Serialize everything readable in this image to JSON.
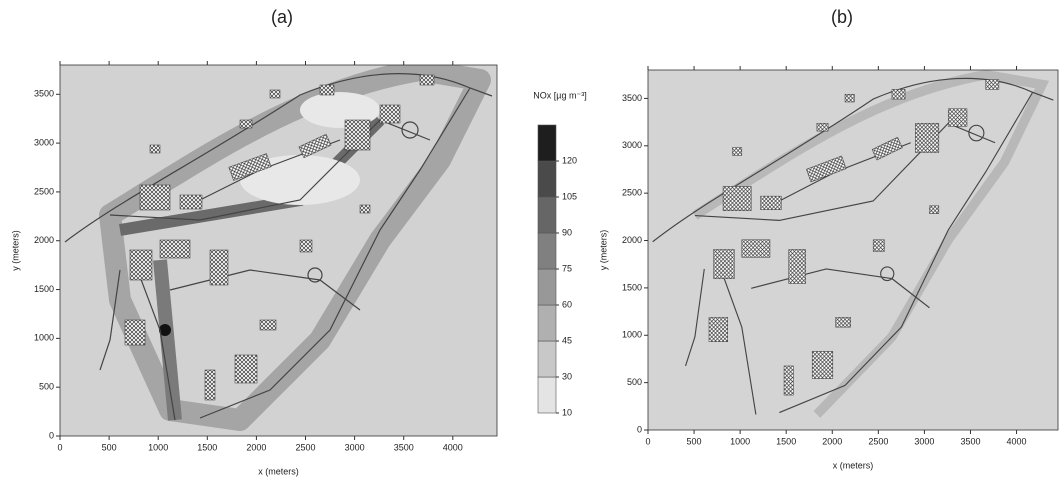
{
  "panels": [
    {
      "label": "(a)",
      "xlabel": "x (meters)",
      "ylabel": "y (meters)",
      "xlim": [
        0,
        4450
      ],
      "ylim": [
        0,
        3800
      ],
      "xticks": [
        0,
        500,
        1000,
        1500,
        2000,
        2500,
        3000,
        3500,
        4000
      ],
      "yticks": [
        0,
        500,
        1000,
        1500,
        2000,
        2500,
        3000,
        3500
      ]
    },
    {
      "label": "(b)",
      "xlabel": "x (meters)",
      "ylabel": "y (meters)",
      "xlim": [
        0,
        4450
      ],
      "ylim": [
        0,
        3800
      ],
      "xticks": [
        0,
        500,
        1000,
        1500,
        2000,
        2500,
        3000,
        3500,
        4000
      ],
      "yticks": [
        0,
        500,
        1000,
        1500,
        2000,
        2500,
        3000,
        3500
      ]
    }
  ],
  "colorbar": {
    "title": "NOx [µg m⁻³]",
    "levels": [
      10,
      30,
      45,
      60,
      75,
      90,
      105,
      120
    ],
    "colors": [
      "#e4e4e4",
      "#c8c8c8",
      "#b0b0b0",
      "#989898",
      "#808080",
      "#666666",
      "#4a4a4a",
      "#1e1e1e"
    ]
  }
}
